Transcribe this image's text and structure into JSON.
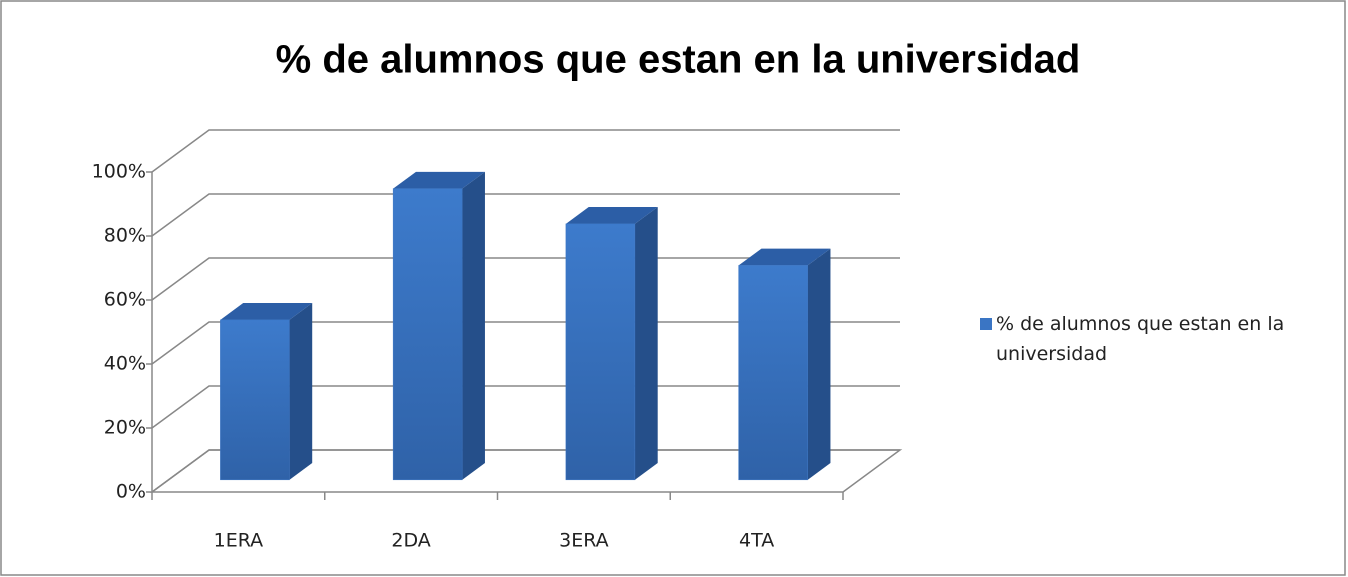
{
  "chart_data": {
    "type": "bar3d",
    "title": "% de alumnos que estan en la universidad",
    "categories": [
      "1ERA",
      "2DA",
      "3ERA",
      "4TA"
    ],
    "series": [
      {
        "name": "% de alumnos que estan en la universidad",
        "color": "#3a75c4",
        "values": [
          50,
          91,
          80,
          67
        ]
      }
    ],
    "ylim": [
      0,
      100
    ],
    "yticks": [
      {
        "value": 0,
        "label": "0%"
      },
      {
        "value": 20,
        "label": "20%"
      },
      {
        "value": 40,
        "label": "40%"
      },
      {
        "value": 60,
        "label": "60%"
      },
      {
        "value": 80,
        "label": "80%"
      },
      {
        "value": 100,
        "label": "100%"
      }
    ],
    "grid": true,
    "legend": "right"
  }
}
